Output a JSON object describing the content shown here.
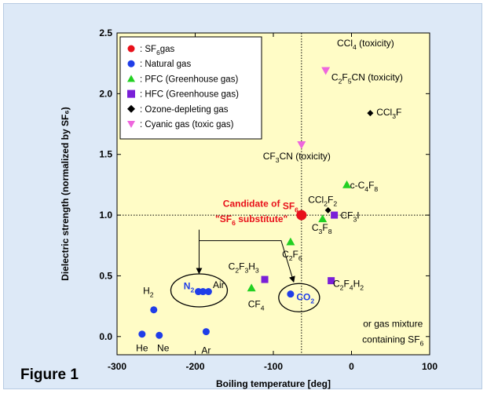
{
  "figure_label": "Figure 1",
  "colors": {
    "panel_bg": "#dde9f7",
    "plot_bg": "#fffcc6",
    "sf6": "#e8101a",
    "natural": "#1f3de8",
    "pfc": "#22d022",
    "hfc": "#7a1fd8",
    "ozone": "#000000",
    "cyanic": "#ee66dd"
  },
  "chart_data": {
    "type": "scatter",
    "xlabel": "Boiling temperature [deg]",
    "ylabel": "Dielectric strength (normalized by SF₆)",
    "xlim": [
      -300,
      100
    ],
    "ylim": [
      -0.15,
      2.5
    ],
    "xticks": [
      -300,
      -200,
      -100,
      0,
      100
    ],
    "xtick_labels": [
      "-300",
      "-200",
      "-100",
      "0",
      "100"
    ],
    "yticks": [
      0.0,
      0.5,
      1.0,
      1.5,
      2.0,
      2.5
    ],
    "ytick_labels": [
      "0.0",
      "0.5",
      "1.0",
      "1.5",
      "2.0",
      "2.5"
    ],
    "reference_lines": {
      "x": -64,
      "y": 1.0
    },
    "legend_position": "top-left",
    "legend": [
      {
        "key": "sf6",
        "marker": "circle",
        "label": ": SF",
        "sub": "6",
        "tail": "gas"
      },
      {
        "key": "natural",
        "marker": "circle",
        "label": ": Natural gas",
        "sub": "",
        "tail": ""
      },
      {
        "key": "pfc",
        "marker": "triangle-up",
        "label": ": PFC (Greenhouse gas)",
        "sub": "",
        "tail": ""
      },
      {
        "key": "hfc",
        "marker": "square",
        "label": ": HFC (Greenhouse gas)",
        "sub": "",
        "tail": ""
      },
      {
        "key": "ozone",
        "marker": "diamond",
        "label": ": Ozone-depleting gas",
        "sub": "",
        "tail": ""
      },
      {
        "key": "cyanic",
        "marker": "triangle-down",
        "label": ": Cyanic gas (toxic gas)",
        "sub": "",
        "tail": ""
      }
    ],
    "series": [
      {
        "key": "sf6",
        "marker": "circle",
        "size": 6.5,
        "points": [
          {
            "x": -64,
            "y": 1.0
          }
        ]
      },
      {
        "key": "natural",
        "marker": "circle",
        "size": 4.5,
        "points": [
          {
            "x": -268,
            "y": 0.02
          },
          {
            "x": -253,
            "y": 0.22
          },
          {
            "x": -246,
            "y": 0.01
          },
          {
            "x": -186,
            "y": 0.04
          },
          {
            "x": -196,
            "y": 0.37
          },
          {
            "x": -190,
            "y": 0.37
          },
          {
            "x": -183,
            "y": 0.37
          },
          {
            "x": -78,
            "y": 0.35
          }
        ]
      },
      {
        "key": "pfc",
        "marker": "triangle-up",
        "size": 5.5,
        "points": [
          {
            "x": -128,
            "y": 0.4
          },
          {
            "x": -78,
            "y": 0.78
          },
          {
            "x": -37,
            "y": 0.97
          },
          {
            "x": -6,
            "y": 1.25
          }
        ]
      },
      {
        "key": "hfc",
        "marker": "square",
        "size": 4.5,
        "points": [
          {
            "x": -111,
            "y": 0.47
          },
          {
            "x": -26,
            "y": 0.46
          },
          {
            "x": -22,
            "y": 1.0
          }
        ]
      },
      {
        "key": "ozone",
        "marker": "diamond",
        "size": 4,
        "points": [
          {
            "x": -30,
            "y": 1.04
          },
          {
            "x": 24,
            "y": 1.84
          }
        ]
      },
      {
        "key": "cyanic",
        "marker": "triangle-down",
        "size": 5.5,
        "points": [
          {
            "x": -64,
            "y": 1.58
          },
          {
            "x": -33,
            "y": 2.19
          }
        ]
      }
    ],
    "annotations": [
      {
        "id": "ccl4",
        "parts": [
          [
            "CCl",
            ""
          ],
          [
            "4",
            "sub"
          ],
          [
            " (toxicity)",
            ""
          ]
        ],
        "x": 18,
        "y": 2.39,
        "anchor": "middle"
      },
      {
        "id": "c2f5cn",
        "parts": [
          [
            "C",
            ""
          ],
          [
            "2",
            "sub"
          ],
          [
            "F",
            ""
          ],
          [
            "5",
            "sub"
          ],
          [
            "CN (toxicity)",
            ""
          ]
        ],
        "x": 20,
        "y": 2.11,
        "anchor": "middle"
      },
      {
        "id": "ccl3f",
        "parts": [
          [
            "CCl",
            ""
          ],
          [
            "3",
            "sub"
          ],
          [
            "F",
            ""
          ]
        ],
        "x": 48,
        "y": 1.82,
        "anchor": "middle"
      },
      {
        "id": "cf3cn",
        "parts": [
          [
            "CF",
            ""
          ],
          [
            "3",
            "sub"
          ],
          [
            "CN (toxicity)",
            ""
          ]
        ],
        "x": -70,
        "y": 1.46,
        "anchor": "middle"
      },
      {
        "id": "c4f8",
        "parts": [
          [
            "c-C",
            ""
          ],
          [
            "4",
            "sub"
          ],
          [
            "F",
            ""
          ],
          [
            "8",
            "sub"
          ]
        ],
        "x": 16,
        "y": 1.22,
        "anchor": "middle"
      },
      {
        "id": "ccl2f2",
        "parts": [
          [
            "CCl",
            ""
          ],
          [
            "2",
            "sub"
          ],
          [
            "F",
            ""
          ],
          [
            "2",
            "sub"
          ]
        ],
        "x": -37,
        "y": 1.1,
        "anchor": "middle"
      },
      {
        "id": "cf3i",
        "parts": [
          [
            "CF",
            ""
          ],
          [
            "3",
            "sub"
          ],
          [
            "I",
            ""
          ]
        ],
        "x": -2,
        "y": 0.97,
        "anchor": "middle"
      },
      {
        "id": "c3f8",
        "parts": [
          [
            "C",
            ""
          ],
          [
            "3",
            "sub"
          ],
          [
            "F",
            ""
          ],
          [
            "8",
            "sub"
          ]
        ],
        "x": -38,
        "y": 0.87,
        "anchor": "middle"
      },
      {
        "id": "c2f6",
        "parts": [
          [
            "C",
            ""
          ],
          [
            "2",
            "sub"
          ],
          [
            "F",
            ""
          ],
          [
            "6",
            "sub"
          ]
        ],
        "x": -76,
        "y": 0.65,
        "anchor": "middle"
      },
      {
        "id": "c2f3h3",
        "parts": [
          [
            "C",
            ""
          ],
          [
            "2",
            "sub"
          ],
          [
            "F",
            ""
          ],
          [
            "3",
            "sub"
          ],
          [
            "H",
            ""
          ],
          [
            "3",
            "sub"
          ]
        ],
        "x": -138,
        "y": 0.55,
        "anchor": "middle"
      },
      {
        "id": "c2f4h2",
        "parts": [
          [
            "C",
            ""
          ],
          [
            "2",
            "sub"
          ],
          [
            "F",
            ""
          ],
          [
            "4",
            "sub"
          ],
          [
            "H",
            ""
          ],
          [
            "2",
            "sub"
          ]
        ],
        "x": -4,
        "y": 0.41,
        "anchor": "middle"
      },
      {
        "id": "cf4",
        "parts": [
          [
            "CF",
            ""
          ],
          [
            "4",
            "sub"
          ]
        ],
        "x": -122,
        "y": 0.24,
        "anchor": "middle"
      },
      {
        "id": "h2",
        "parts": [
          [
            "H",
            ""
          ],
          [
            "2",
            "sub"
          ]
        ],
        "x": -260,
        "y": 0.35,
        "anchor": "middle"
      },
      {
        "id": "he",
        "parts": [
          [
            "He",
            ""
          ]
        ],
        "x": -268,
        "y": -0.12,
        "anchor": "middle"
      },
      {
        "id": "ne",
        "parts": [
          [
            "Ne",
            ""
          ]
        ],
        "x": -241,
        "y": -0.12,
        "anchor": "middle"
      },
      {
        "id": "ar",
        "parts": [
          [
            "Ar",
            ""
          ]
        ],
        "x": -186,
        "y": -0.14,
        "anchor": "middle"
      },
      {
        "id": "air",
        "parts": [
          [
            "Air",
            ""
          ]
        ],
        "x": -170,
        "y": 0.4,
        "anchor": "middle"
      },
      {
        "id": "mixture1",
        "parts": [
          [
            "or gas mixture",
            ""
          ]
        ],
        "x": 53,
        "y": 0.08,
        "anchor": "middle"
      },
      {
        "id": "mixture2",
        "parts": [
          [
            "containing SF",
            ""
          ],
          [
            "6",
            "sub"
          ]
        ],
        "x": 53,
        "y": -0.05,
        "anchor": "middle"
      }
    ],
    "highlights": [
      {
        "id": "sf6-label",
        "parts": [
          [
            "SF",
            ""
          ],
          [
            "6",
            "sub"
          ]
        ],
        "x": -78,
        "y": 1.05,
        "anchor": "middle",
        "color": "sf6",
        "bold": true
      },
      {
        "id": "n2-label",
        "parts": [
          [
            "N",
            ""
          ],
          [
            "2",
            "sub"
          ]
        ],
        "x": -208,
        "y": 0.39,
        "anchor": "middle",
        "color": "natural",
        "bold": true
      },
      {
        "id": "co2-label",
        "parts": [
          [
            "CO",
            ""
          ],
          [
            "2",
            "sub"
          ]
        ],
        "x": -59,
        "y": 0.3,
        "anchor": "middle",
        "color": "natural",
        "bold": true
      }
    ],
    "candidate_label": {
      "line1": "Candidate of",
      "line2_parts": [
        [
          "\"SF",
          ""
        ],
        [
          "6",
          "sub"
        ],
        [
          " substitute\"",
          ""
        ]
      ]
    }
  }
}
